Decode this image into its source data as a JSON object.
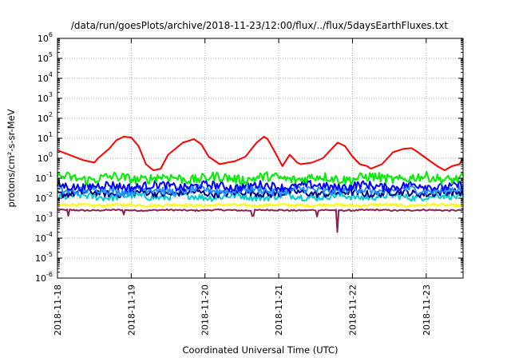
{
  "chart_data": {
    "type": "line",
    "title": "/data/run/goesPlots/archive/2018-11-23/12:00/flux/../flux/5daysEarthFluxes.txt",
    "xlabel": "Coordinated Universal Time (UTC)",
    "ylabel": "protons/cm²-s-sr-MeV",
    "yscale": "log",
    "ylim": [
      1e-06,
      1000000.0
    ],
    "y_ticks": [
      {
        "base": "10",
        "exp": "-6",
        "value": 1e-06
      },
      {
        "base": "10",
        "exp": "-5",
        "value": 1e-05
      },
      {
        "base": "10",
        "exp": "-4",
        "value": 0.0001
      },
      {
        "base": "10",
        "exp": "-3",
        "value": 0.001
      },
      {
        "base": "10",
        "exp": "-2",
        "value": 0.01
      },
      {
        "base": "10",
        "exp": "-1",
        "value": 0.1
      },
      {
        "base": "10",
        "exp": "0",
        "value": 1
      },
      {
        "base": "10",
        "exp": "1",
        "value": 10
      },
      {
        "base": "10",
        "exp": "2",
        "value": 100
      },
      {
        "base": "10",
        "exp": "3",
        "value": 1000
      },
      {
        "base": "10",
        "exp": "4",
        "value": 10000
      },
      {
        "base": "10",
        "exp": "5",
        "value": 100000
      },
      {
        "base": "10",
        "exp": "6",
        "value": 1000000
      }
    ],
    "xlim": [
      "2018-11-18",
      "2018-11-23 12:00"
    ],
    "x_ticks": [
      "2018-11-18",
      "2018-11-19",
      "2018-11-20",
      "2018-11-21",
      "2018-11-22",
      "2018-11-23"
    ],
    "grid": true,
    "series": [
      {
        "color": "#ff0000",
        "x": [
          0,
          0.2,
          0.35,
          0.5,
          0.55,
          0.7,
          0.8,
          0.9,
          1.0,
          1.1,
          1.2,
          1.3,
          1.4,
          1.5,
          1.7,
          1.85,
          1.95,
          2.05,
          2.2,
          2.3,
          2.4,
          2.55,
          2.7,
          2.8,
          2.85,
          2.95,
          3.05,
          3.15,
          3.25,
          3.3,
          3.45,
          3.6,
          3.7,
          3.8,
          3.9,
          4.0,
          4.1,
          4.2,
          4.25,
          4.4,
          4.55,
          4.7,
          4.8,
          4.85,
          5.0,
          5.15,
          5.25,
          5.35,
          5.45,
          5.5
        ],
        "values": [
          2.5,
          1.3,
          0.8,
          0.6,
          1.0,
          3.0,
          8.0,
          12.0,
          11.0,
          4.0,
          0.5,
          0.25,
          0.3,
          1.5,
          6.0,
          9.0,
          5.0,
          1.2,
          0.5,
          0.6,
          0.7,
          1.2,
          6.0,
          12.0,
          9.0,
          2.0,
          0.4,
          1.5,
          0.6,
          0.5,
          0.6,
          1.0,
          2.5,
          6.0,
          4.0,
          1.2,
          0.5,
          0.4,
          0.3,
          0.5,
          2.0,
          3.0,
          3.2,
          2.5,
          1.0,
          0.4,
          0.25,
          0.4,
          0.5,
          1.0
        ]
      },
      {
        "color": "#00ee00",
        "x_range": [
          0,
          5.5
        ],
        "level": 0.1,
        "spread": 0.35
      },
      {
        "color": "#0000ff",
        "x_range": [
          0,
          5.5
        ],
        "level": 0.04,
        "spread": 0.3
      },
      {
        "color": "#1e90ff",
        "x_range": [
          0,
          5.5
        ],
        "level": 0.025,
        "spread": 0.3
      },
      {
        "color": "#000090",
        "x_range": [
          0,
          5.5
        ],
        "level": 0.018,
        "spread": 0.25
      },
      {
        "color": "#00cccc",
        "x_range": [
          0,
          5.5
        ],
        "level": 0.012,
        "spread": 0.25
      },
      {
        "color": "#ffff00",
        "x_range": [
          0,
          5.5
        ],
        "level": 0.0045,
        "spread": 0.1
      },
      {
        "color": "#8b2252",
        "x_range": [
          0,
          5.5
        ],
        "level": 0.0025,
        "spread": 0.05,
        "dips": [
          {
            "x": 0.15,
            "value": 0.0013
          },
          {
            "x": 0.9,
            "value": 0.0015
          },
          {
            "x": 3.52,
            "value": 0.0012
          },
          {
            "x": 2.65,
            "value": 0.0013
          },
          {
            "x": 3.8,
            "value": 0.0002
          }
        ]
      }
    ]
  }
}
